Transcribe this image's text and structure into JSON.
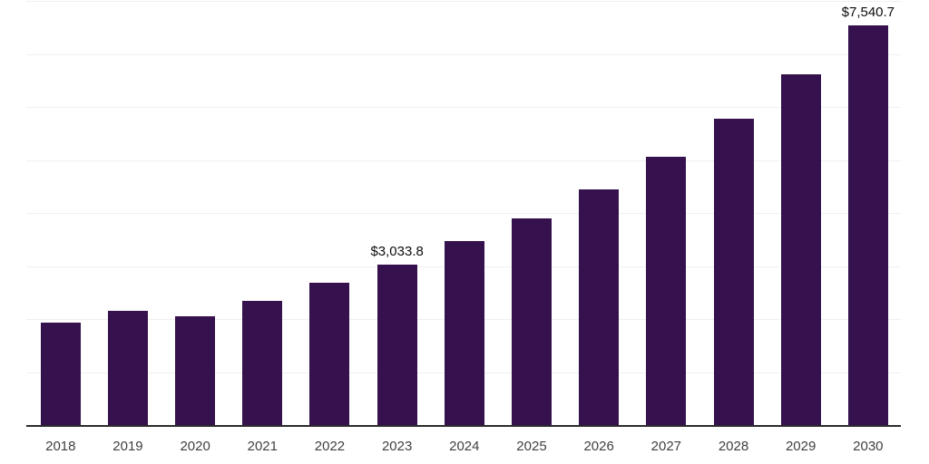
{
  "chart_data": {
    "type": "bar",
    "title": "",
    "xlabel": "",
    "ylabel": "",
    "categories": [
      "2018",
      "2019",
      "2020",
      "2021",
      "2022",
      "2023",
      "2024",
      "2025",
      "2026",
      "2027",
      "2028",
      "2029",
      "2030"
    ],
    "values": [
      1925,
      2150,
      2055,
      2350,
      2690,
      3033.8,
      3465,
      3905,
      4445,
      5055,
      5775,
      6610,
      7540.7
    ],
    "data_labels": {
      "2023": "$3,033.8",
      "2030": "$7,540.7"
    },
    "ylim": [
      0,
      8000
    ],
    "gridline_step": 1000,
    "grid": "horizontal",
    "legend": "none",
    "bar_color": "#35114E",
    "background_color": "#ffffff",
    "axis_line_color": "#2b2b2b",
    "gridline_color": "#f0f0f0",
    "tick_label_color": "#3f3f3f",
    "data_label_color": "#0d0d0d"
  }
}
